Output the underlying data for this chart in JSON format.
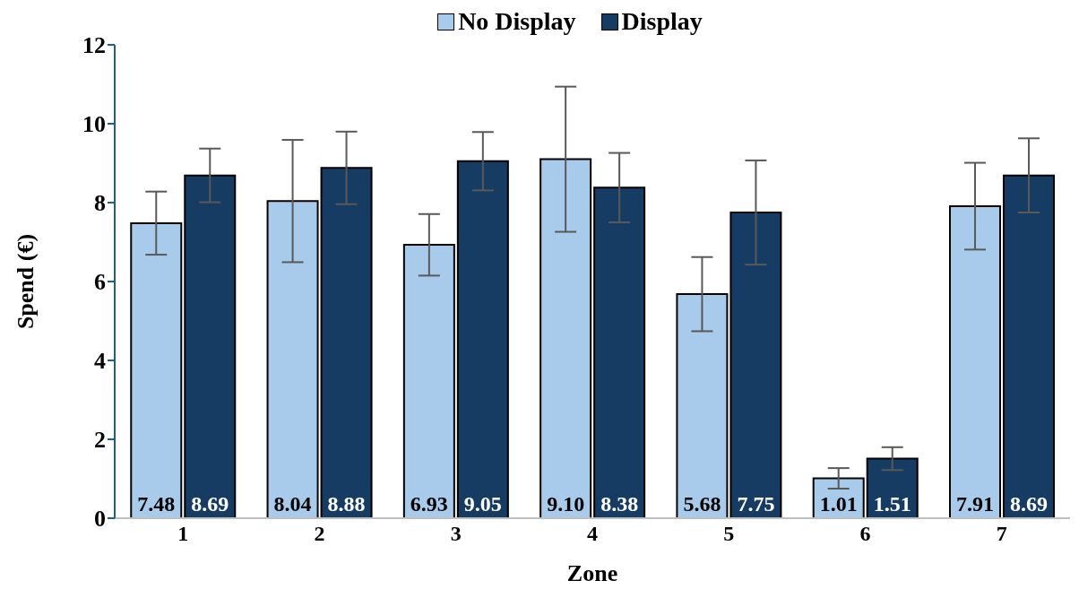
{
  "chart_data": {
    "type": "bar",
    "xlabel": "Zone",
    "ylabel": "Spend (€)",
    "categories": [
      "1",
      "2",
      "3",
      "4",
      "5",
      "6",
      "7"
    ],
    "series": [
      {
        "name": "No Display",
        "color": "#a9cbeb",
        "values": [
          7.48,
          8.04,
          6.93,
          9.1,
          5.68,
          1.01,
          7.91
        ],
        "errors": [
          0.8,
          1.55,
          0.78,
          1.84,
          0.94,
          0.26,
          1.1
        ],
        "value_labels": [
          "7.48",
          "8.04",
          "6.93",
          "9.10",
          "5.68",
          "1.01",
          "7.91"
        ]
      },
      {
        "name": "Display",
        "color": "#173c63",
        "values": [
          8.69,
          8.88,
          9.05,
          8.38,
          7.75,
          1.51,
          8.69
        ],
        "errors": [
          0.68,
          0.92,
          0.74,
          0.88,
          1.32,
          0.29,
          0.94
        ],
        "value_labels": [
          "8.69",
          "8.88",
          "9.05",
          "8.38",
          "7.75",
          "1.51",
          "8.69"
        ]
      }
    ],
    "ylim": [
      0,
      12
    ],
    "yticks": [
      0,
      2,
      4,
      6,
      8,
      10,
      12
    ],
    "grid": false,
    "legend": "top"
  }
}
